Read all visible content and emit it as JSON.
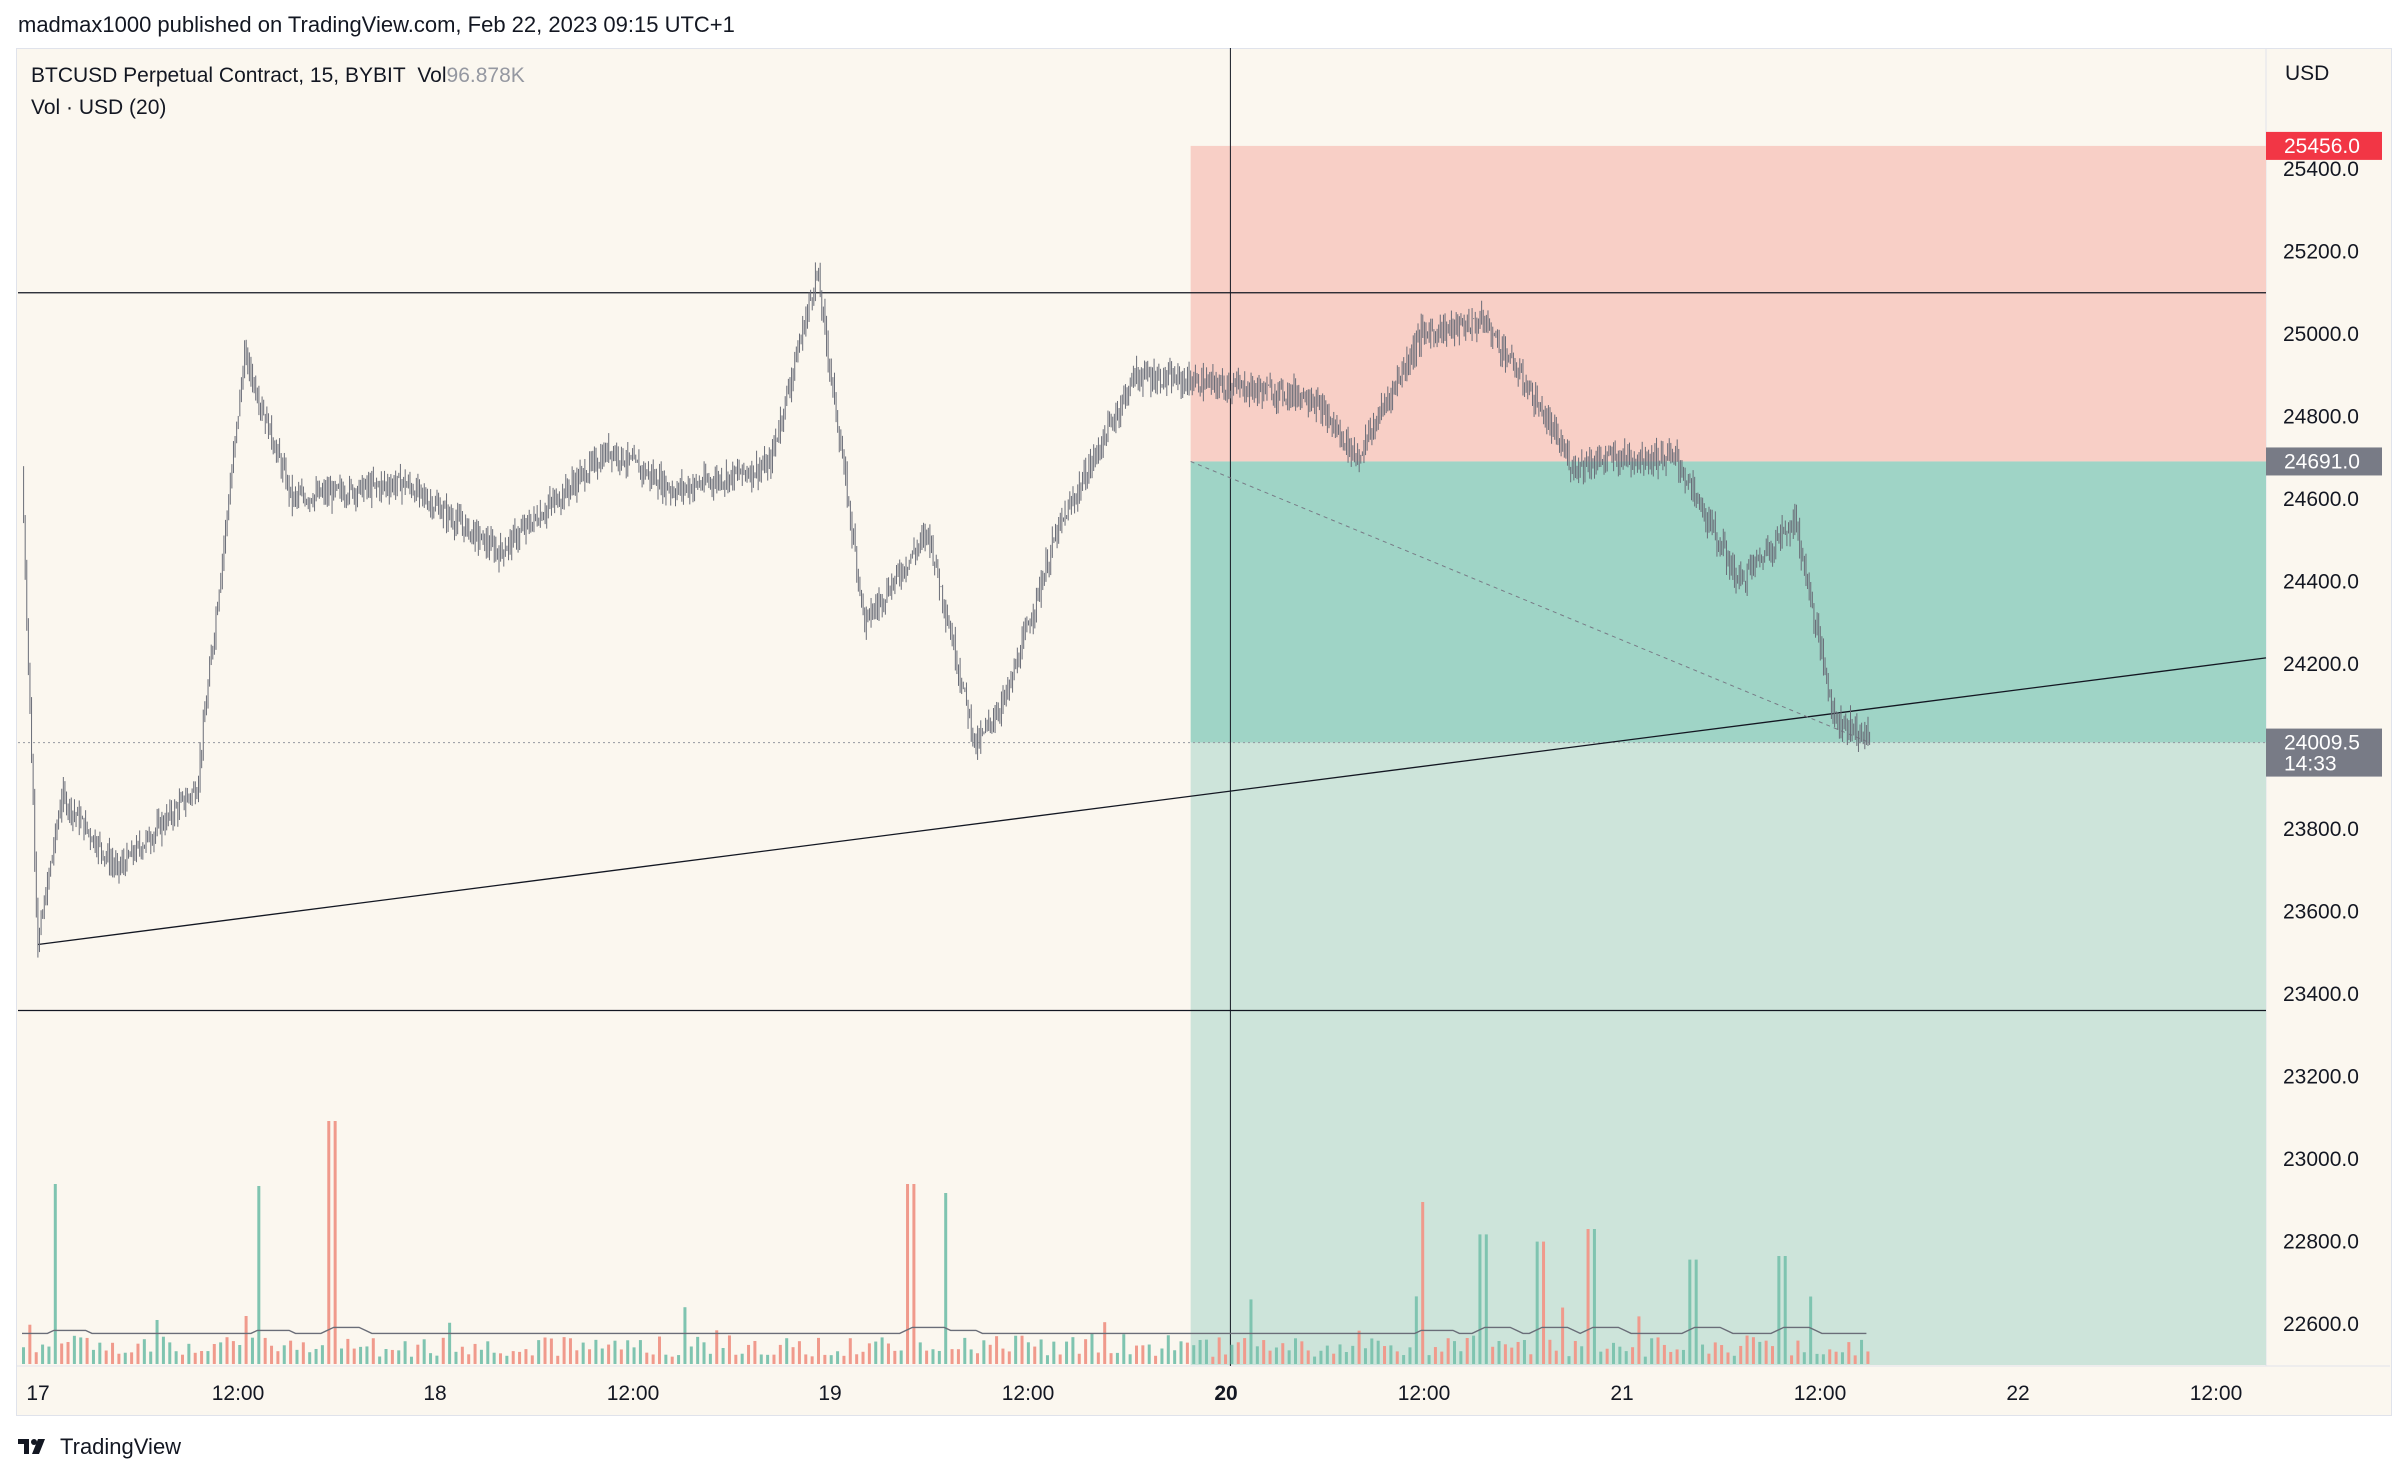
{
  "header": {
    "publisher_line": "madmax1000 published on TradingView.com, Feb 22, 2023 09:15 UTC+1"
  },
  "legend": {
    "symbol": "BTCUSD Perpetual Contract, 15, BYBIT",
    "vol_label": "Vol",
    "vol_value": "96.878K",
    "vol_indicator": "Vol · USD (20)"
  },
  "footer": {
    "brand": "TradingView"
  },
  "chart_data": {
    "type": "candlestick",
    "currency": "USD",
    "y_ticks": [
      25400,
      25200,
      25000,
      24800,
      24600,
      24400,
      24200,
      24000,
      23800,
      23600,
      23400,
      23200,
      23000,
      22800,
      22600
    ],
    "y_tick_labels": [
      "25400.0",
      "25200.0",
      "25000.0",
      "24800.0",
      "24600.0",
      "24400.0",
      "24200.0",
      "24000.0",
      "23800.0",
      "23600.0",
      "23400.0",
      "23200.0",
      "23000.0",
      "22800.0",
      "22600.0"
    ],
    "x_tick_labels": [
      "17",
      "12:00",
      "18",
      "12:00",
      "19",
      "12:00",
      "20",
      "12:00",
      "21",
      "12:00",
      "22",
      "12:00"
    ],
    "bold_x_tick": "20",
    "price_path": [
      [
        0,
        24660
      ],
      [
        10,
        23520
      ],
      [
        25,
        23880
      ],
      [
        60,
        23700
      ],
      [
        110,
        23900
      ],
      [
        140,
        24950
      ],
      [
        170,
        24600
      ],
      [
        240,
        24640
      ],
      [
        300,
        24470
      ],
      [
        370,
        24720
      ],
      [
        410,
        24620
      ],
      [
        470,
        24680
      ],
      [
        500,
        25150
      ],
      [
        530,
        24300
      ],
      [
        570,
        24520
      ],
      [
        600,
        24000
      ],
      [
        620,
        24130
      ],
      [
        650,
        24510
      ],
      [
        700,
        24900
      ],
      [
        810,
        24850
      ],
      [
        840,
        24700
      ],
      [
        880,
        25000
      ],
      [
        920,
        25030
      ],
      [
        950,
        24850
      ],
      [
        975,
        24680
      ],
      [
        1000,
        24700
      ],
      [
        1040,
        24700
      ],
      [
        1080,
        24400
      ],
      [
        1115,
        24550
      ],
      [
        1140,
        24070
      ],
      [
        1162,
        24020
      ]
    ],
    "horizontal_lines": [
      25100,
      23360
    ],
    "trendline": {
      "from": [
        10,
        23520
      ],
      "to": [
        1200,
        24110
      ]
    },
    "current_price_line": 24009.5,
    "short_position": {
      "stop": 25456.0,
      "entry": 24691.0,
      "target": 22600
    },
    "price_tags": [
      {
        "value": 25456.0,
        "label": "25456.0",
        "color": "#f23645"
      },
      {
        "value": 24691.0,
        "label": "24691.0",
        "color": "#787b86"
      },
      {
        "value": 24009.5,
        "label": "24009.5",
        "sub": "14:33",
        "color": "#787b86"
      }
    ],
    "volume": {
      "ma_length": 20,
      "peak_bars": [
        [
          20,
          1.0
        ],
        [
          148,
          0.95
        ],
        [
          195,
          1.35
        ],
        [
          558,
          1.0
        ],
        [
          580,
          0.95
        ],
        [
          880,
          0.9
        ],
        [
          918,
          0.72
        ],
        [
          955,
          0.68
        ],
        [
          985,
          0.75
        ],
        [
          1050,
          0.58
        ],
        [
          1105,
          0.6
        ]
      ]
    }
  }
}
